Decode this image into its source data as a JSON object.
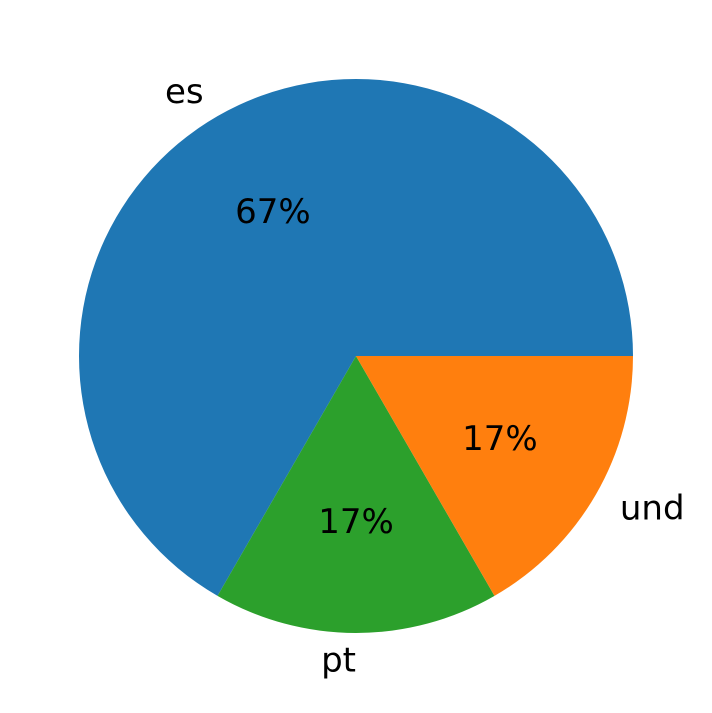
{
  "chart_data": {
    "type": "pie",
    "title": "",
    "slices": [
      {
        "label": "es",
        "value": 4,
        "pct_label": "67%",
        "color": "#1f77b4"
      },
      {
        "label": "pt",
        "value": 1,
        "pct_label": "17%",
        "color": "#2ca02c"
      },
      {
        "label": "und",
        "value": 1,
        "pct_label": "17%",
        "color": "#ff7f0e"
      }
    ],
    "start_angle_deg": 0,
    "direction": "counterclockwise"
  }
}
